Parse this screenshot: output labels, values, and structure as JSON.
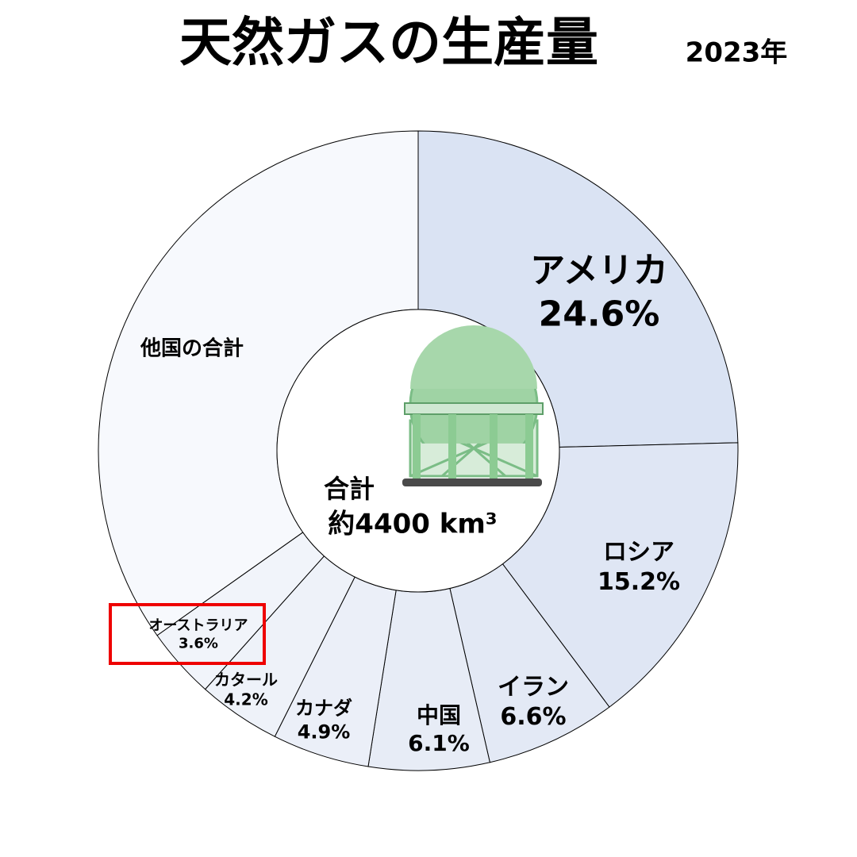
{
  "chart_data": {
    "type": "donut",
    "title": "天然ガスの生産量",
    "subtitle": "2023年",
    "categories": [
      "アメリカ",
      "ロシア",
      "イラン",
      "中国",
      "カナダ",
      "カタール",
      "オーストラリア",
      "他国の合計"
    ],
    "values": [
      24.6,
      15.2,
      6.6,
      6.1,
      4.9,
      4.2,
      3.6,
      34.8
    ],
    "value_labels": [
      "24.6%",
      "15.2%",
      "6.6%",
      "6.1%",
      "4.9%",
      "4.2%",
      "3.6%",
      null
    ],
    "colors": [
      "#dae3f3",
      "#dfe6f4",
      "#e3e9f5",
      "#e7ecf6",
      "#ebeff8",
      "#eef2f9",
      "#f1f4fa",
      "#f7f9fd"
    ],
    "annotations": [
      "合計",
      "約4400 km³"
    ]
  }
}
